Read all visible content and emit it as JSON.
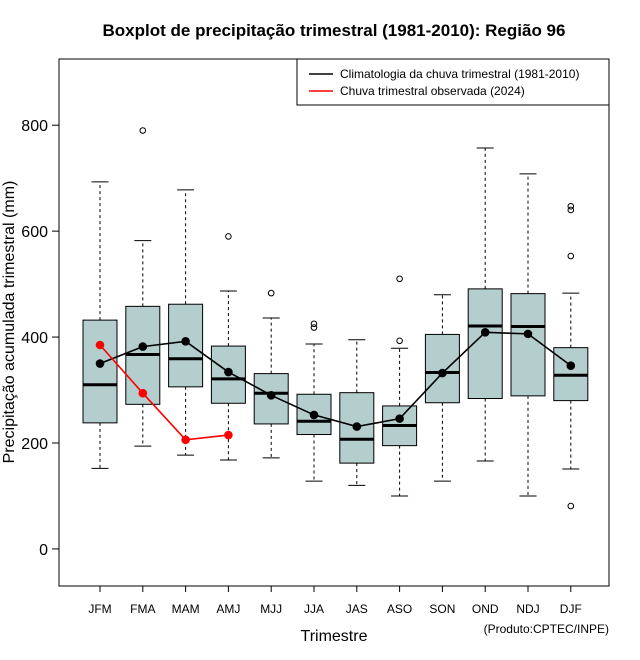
{
  "chart_data": {
    "type": "boxplot",
    "title": "Boxplot de precipitação trimestral (1981-2010): Região 96",
    "xlabel": "Trimestre",
    "ylabel": "Precipitação acumulada trimestral (mm)",
    "ylim": [
      -70,
      925
    ],
    "yticks": [
      0,
      200,
      400,
      600,
      800
    ],
    "categories": [
      "JFM",
      "FMA",
      "MAM",
      "AMJ",
      "MJJ",
      "JJA",
      "JAS",
      "ASO",
      "SON",
      "OND",
      "NDJ",
      "DJF"
    ],
    "box_color": "#b4cdcd",
    "boxes": [
      {
        "min": 152,
        "q1": 238,
        "median": 310,
        "q3": 432,
        "max": 693,
        "outliers": []
      },
      {
        "min": 194,
        "q1": 273,
        "median": 367,
        "q3": 458,
        "max": 582,
        "outliers": [
          790
        ]
      },
      {
        "min": 177,
        "q1": 306,
        "median": 359,
        "q3": 462,
        "max": 678,
        "outliers": []
      },
      {
        "min": 168,
        "q1": 275,
        "median": 321,
        "q3": 383,
        "max": 487,
        "outliers": [
          590
        ]
      },
      {
        "min": 172,
        "q1": 236,
        "median": 294,
        "q3": 331,
        "max": 436,
        "outliers": [
          483
        ]
      },
      {
        "min": 128,
        "q1": 216,
        "median": 241,
        "q3": 292,
        "max": 387,
        "outliers": [
          418,
          425
        ]
      },
      {
        "min": 120,
        "q1": 162,
        "median": 207,
        "q3": 295,
        "max": 395,
        "outliers": []
      },
      {
        "min": 100,
        "q1": 195,
        "median": 233,
        "q3": 270,
        "max": 379,
        "outliers": [
          393,
          510
        ]
      },
      {
        "min": 128,
        "q1": 276,
        "median": 333,
        "q3": 405,
        "max": 480,
        "outliers": []
      },
      {
        "min": 166,
        "q1": 284,
        "median": 421,
        "q3": 491,
        "max": 757,
        "outliers": []
      },
      {
        "min": 100,
        "q1": 289,
        "median": 420,
        "q3": 482,
        "max": 708,
        "outliers": []
      },
      {
        "min": 151,
        "q1": 280,
        "median": 328,
        "q3": 380,
        "max": 483,
        "outliers": [
          81,
          553,
          640,
          647
        ]
      }
    ],
    "series": [
      {
        "name": "Climatologia da chuva trimestral (1981-2010)",
        "color": "#000000",
        "values": [
          350,
          382,
          392,
          334,
          290,
          253,
          231,
          246,
          332,
          409,
          406,
          346
        ]
      },
      {
        "name": "Chuva trimestral observada (2024)",
        "color": "#ff0000",
        "values": [
          385,
          294,
          206,
          215
        ]
      }
    ],
    "legend_position": "top-right",
    "credit": "(Produto:CPTEC/INPE)"
  }
}
